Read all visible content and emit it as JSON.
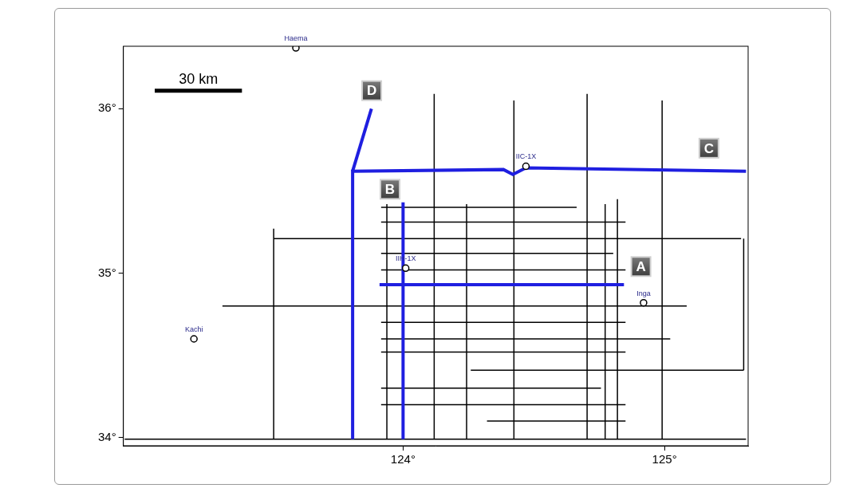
{
  "chart_data": {
    "type": "map",
    "xlim": [
      122.93,
      125.32
    ],
    "ylim": [
      33.95,
      36.38
    ],
    "xticks": [
      {
        "value": 124,
        "label": "124°"
      },
      {
        "value": 125,
        "label": "125°"
      }
    ],
    "yticks": [
      {
        "value": 34,
        "label": "34°"
      },
      {
        "value": 35,
        "label": "35°"
      },
      {
        "value": 36,
        "label": "36°"
      }
    ],
    "grid": false,
    "survey_lines": {
      "color": "#000000",
      "lines": [
        [
          [
            123.916,
            35.4
          ],
          [
            124.664,
            35.4
          ]
        ],
        [
          [
            123.916,
            35.31
          ],
          [
            124.851,
            35.31
          ]
        ],
        [
          [
            123.505,
            35.21
          ],
          [
            125.293,
            35.21
          ]
        ],
        [
          [
            123.916,
            35.12
          ],
          [
            124.804,
            35.12
          ]
        ],
        [
          [
            123.916,
            35.02
          ],
          [
            124.851,
            35.02
          ]
        ],
        [
          [
            123.309,
            34.8
          ],
          [
            125.085,
            34.8
          ]
        ],
        [
          [
            123.916,
            34.7
          ],
          [
            124.851,
            34.7
          ]
        ],
        [
          [
            123.916,
            34.6
          ],
          [
            125.022,
            34.6
          ]
        ],
        [
          [
            123.916,
            34.52
          ],
          [
            124.851,
            34.52
          ]
        ],
        [
          [
            124.259,
            34.41
          ],
          [
            125.303,
            34.41
          ]
        ],
        [
          [
            123.916,
            34.3
          ],
          [
            124.757,
            34.3
          ]
        ],
        [
          [
            123.916,
            34.2
          ],
          [
            124.851,
            34.2
          ]
        ],
        [
          [
            124.321,
            34.1
          ],
          [
            124.851,
            34.1
          ]
        ],
        [
          [
            122.935,
            33.99
          ],
          [
            125.312,
            33.99
          ]
        ],
        [
          [
            123.505,
            35.27
          ],
          [
            123.505,
            33.99
          ]
        ],
        [
          [
            123.938,
            35.42
          ],
          [
            123.938,
            33.99
          ]
        ],
        [
          [
            124.119,
            36.09
          ],
          [
            124.119,
            33.99
          ]
        ],
        [
          [
            124.243,
            35.42
          ],
          [
            124.243,
            33.99
          ]
        ],
        [
          [
            124.424,
            36.05
          ],
          [
            124.424,
            33.99
          ]
        ],
        [
          [
            124.704,
            36.09
          ],
          [
            124.704,
            33.99
          ]
        ],
        [
          [
            124.773,
            35.42
          ],
          [
            124.773,
            33.99
          ]
        ],
        [
          [
            124.82,
            35.45
          ],
          [
            124.82,
            33.99
          ]
        ],
        [
          [
            124.991,
            36.05
          ],
          [
            124.991,
            33.99
          ]
        ],
        [
          [
            125.303,
            35.21
          ],
          [
            125.303,
            34.41
          ]
        ]
      ]
    },
    "series": [
      {
        "name": "A",
        "color": "#1f1fe0",
        "line_style": "solid",
        "label_at": [
          124.91,
          35.04
        ],
        "points": [
          [
            123.91,
            34.93
          ],
          [
            124.845,
            34.93
          ]
        ]
      },
      {
        "name": "B",
        "color": "#1f1fe0",
        "line_style": "solid",
        "label_at": [
          123.95,
          35.51
        ],
        "points": [
          [
            124.0,
            35.43
          ],
          [
            124.0,
            33.99
          ]
        ]
      },
      {
        "name": "C",
        "color": "#1f1fe0",
        "line_style": "solid",
        "label_at": [
          125.17,
          35.76
        ],
        "points": [
          [
            123.807,
            33.99
          ],
          [
            123.807,
            35.62
          ],
          [
            124.384,
            35.63
          ],
          [
            124.42,
            35.6
          ],
          [
            124.47,
            35.64
          ],
          [
            125.312,
            35.62
          ]
        ]
      },
      {
        "name": "D",
        "color": "#1f1fe0",
        "line_style": "solid",
        "label_at": [
          123.88,
          36.11
        ],
        "points": [
          [
            123.807,
            35.62
          ],
          [
            123.879,
            36.0
          ]
        ]
      }
    ],
    "wells": {
      "marker": "circle",
      "color": "#2a2a8a",
      "points": [
        {
          "name": "Haema",
          "lon": 123.59,
          "lat": 36.37
        },
        {
          "name": "IIC-1X",
          "lon": 124.47,
          "lat": 35.65
        },
        {
          "name": "IIH-1X",
          "lon": 124.01,
          "lat": 35.03
        },
        {
          "name": "Inga",
          "lon": 124.92,
          "lat": 34.82
        },
        {
          "name": "Kachi",
          "lon": 123.2,
          "lat": 34.6
        }
      ]
    },
    "scale_bar": {
      "label": "30 km",
      "length_km": 30,
      "at": [
        123.05,
        36.11
      ]
    }
  }
}
